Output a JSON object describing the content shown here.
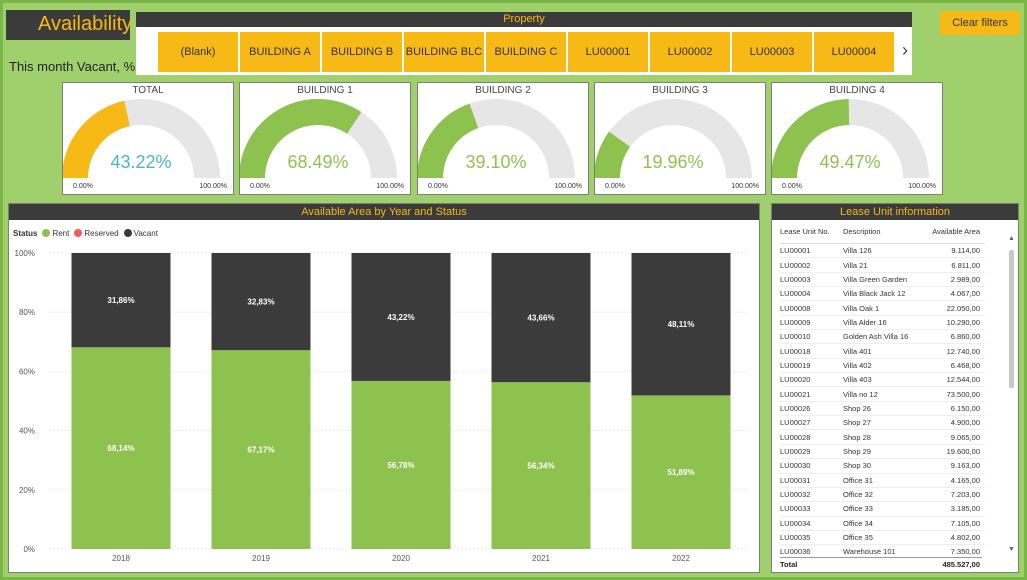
{
  "header": {
    "title": "Availability",
    "subtitle": "This month Vacant, %"
  },
  "property": {
    "title": "Property",
    "items": [
      "(Blank)",
      "BUILDING A",
      "BUILDING B",
      "BUILDING BLC",
      "BUILDING C",
      "LU00001",
      "LU00002",
      "LU00003",
      "LU00004"
    ],
    "next_icon": "›"
  },
  "clear_filters": "Clear filters",
  "gauges": [
    {
      "title": "TOTAL",
      "value": 43.22,
      "label": "43.22%",
      "min": "0.00%",
      "max": "100.00%",
      "color": "#f7b916",
      "text_color": "#4bb5c9"
    },
    {
      "title": "BUILDING 1",
      "value": 68.49,
      "label": "68.49%",
      "min": "0.00%",
      "max": "100.00%",
      "color": "#8ec24e",
      "text_color": "#8ec24e"
    },
    {
      "title": "BUILDING 2",
      "value": 39.1,
      "label": "39.10%",
      "min": "0.00%",
      "max": "100.00%",
      "color": "#8ec24e",
      "text_color": "#8ec24e"
    },
    {
      "title": "BUILDING 3",
      "value": 19.96,
      "label": "19.96%",
      "min": "0.00%",
      "max": "100.00%",
      "color": "#8ec24e",
      "text_color": "#8ec24e"
    },
    {
      "title": "BUILDING 4",
      "value": 49.47,
      "label": "49.47%",
      "min": "0.00%",
      "max": "100.00%",
      "color": "#8ec24e",
      "text_color": "#8ec24e"
    }
  ],
  "chart_data": {
    "type": "bar",
    "title": "Available Area by Year and Status",
    "stacked": true,
    "categories": [
      "2018",
      "2019",
      "2020",
      "2021",
      "2022"
    ],
    "series": [
      {
        "name": "Rent",
        "color": "#8ec24e",
        "values": [
          68.14,
          67.17,
          56.78,
          56.34,
          51.89
        ],
        "labels": [
          "68,14%",
          "67,17%",
          "56,78%",
          "56,34%",
          "51,89%"
        ]
      },
      {
        "name": "Reserved",
        "color": "#f25c5c",
        "values": [
          0,
          0,
          0,
          0,
          0
        ],
        "labels": [
          "",
          "",
          "",
          "",
          ""
        ]
      },
      {
        "name": "Vacant",
        "color": "#3b3b3b",
        "values": [
          31.86,
          32.83,
          43.22,
          43.66,
          48.11
        ],
        "labels": [
          "31,86%",
          "32,83%",
          "43,22%",
          "43,66%",
          "48,11%"
        ]
      }
    ],
    "legend_title": "Status",
    "legend_position": "top-left",
    "yticks": [
      "0%",
      "20%",
      "40%",
      "60%",
      "80%",
      "100%"
    ],
    "ylim": [
      0,
      100
    ]
  },
  "lease": {
    "title": "Lease Unit information",
    "columns": [
      "Lease Unit No.",
      "Description",
      "Available Area"
    ],
    "rows": [
      [
        "LU00001",
        "Villa 126",
        "9.114,00"
      ],
      [
        "LU00002",
        "Villa 21",
        "6.811,00"
      ],
      [
        "LU00003",
        "Villa Green Garden",
        "2.989,00"
      ],
      [
        "LU00004",
        "Villa Black Jack 12",
        "4.067,00"
      ],
      [
        "LU00008",
        "Villa Oak 1",
        "22.050,00"
      ],
      [
        "LU00009",
        "Villa Alder 16",
        "10.290,00"
      ],
      [
        "LU00010",
        "Golden Ash Villa 16",
        "6.860,00"
      ],
      [
        "LU00018",
        "Villa 401",
        "12.740,00"
      ],
      [
        "LU00019",
        "Villa 402",
        "6.468,00"
      ],
      [
        "LU00020",
        "Villa 403",
        "12.544,00"
      ],
      [
        "LU00021",
        "Villa no 12",
        "73.500,00"
      ],
      [
        "LU00026",
        "Shop 26",
        "6.150,00"
      ],
      [
        "LU00027",
        "Shop 27",
        "4.900,00"
      ],
      [
        "LU00028",
        "Shop 28",
        "9.065,00"
      ],
      [
        "LU00029",
        "Shop 29",
        "19.600,00"
      ],
      [
        "LU00030",
        "Shop 30",
        "9.163,00"
      ],
      [
        "LU00031",
        "Office 31",
        "4.165,00"
      ],
      [
        "LU00032",
        "Office 32",
        "7.203,00"
      ],
      [
        "LU00033",
        "Office 33",
        "3.185,00"
      ],
      [
        "LU00034",
        "Office 34",
        "7.105,00"
      ],
      [
        "LU00035",
        "Office 35",
        "4.802,00"
      ],
      [
        "LU00036",
        "Warehouse 101",
        "7.350,00"
      ]
    ],
    "total_label": "Total",
    "total_value": "485.527,00"
  }
}
